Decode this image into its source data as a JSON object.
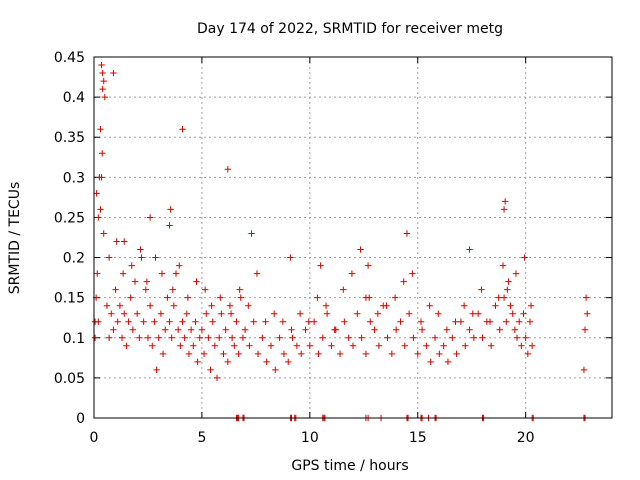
{
  "chart_data": {
    "type": "scatter",
    "title": "Day 174 of 2022, SRMTID for receiver metg",
    "xlabel": "GPS time / hours",
    "ylabel": "SRMTID / TECUs",
    "xlim": [
      0,
      24
    ],
    "ylim": [
      0,
      0.45
    ],
    "xticks": [
      "0",
      "5",
      "10",
      "15",
      "20"
    ],
    "yticks": [
      "0",
      "0.05",
      "0.1",
      "0.15",
      "0.2",
      "0.25",
      "0.3",
      "0.35",
      "0.4",
      "0.45"
    ],
    "grid": true,
    "marker": "+",
    "color": "#e00000",
    "series": [
      {
        "name": "SRMTID",
        "x": [
          0.05,
          0.1,
          0.15,
          0.2,
          0.25,
          0.3,
          0.35,
          0.4,
          0.45,
          0.5,
          0.6,
          0.7,
          0.8,
          0.9,
          1.0,
          1.1,
          1.2,
          1.3,
          1.4,
          1.5,
          1.6,
          1.7,
          1.8,
          1.9,
          2.0,
          2.1,
          2.2,
          2.3,
          2.4,
          2.5,
          2.6,
          2.7,
          2.8,
          2.9,
          3.0,
          3.1,
          3.2,
          3.3,
          3.4,
          3.5,
          3.6,
          3.7,
          3.8,
          3.9,
          4.0,
          4.1,
          4.2,
          4.3,
          4.4,
          4.5,
          4.6,
          4.7,
          4.8,
          4.9,
          5.0,
          5.1,
          5.2,
          5.3,
          5.4,
          5.5,
          5.6,
          5.7,
          5.8,
          5.9,
          6.0,
          6.1,
          6.2,
          6.3,
          6.4,
          6.5,
          6.6,
          6.7,
          6.8,
          6.9,
          7.0,
          7.2,
          7.4,
          7.6,
          7.8,
          8.0,
          8.2,
          8.4,
          8.6,
          8.8,
          9.0,
          9.2,
          9.4,
          9.6,
          9.8,
          10.0,
          10.2,
          10.4,
          10.6,
          10.8,
          11.0,
          11.2,
          11.4,
          11.6,
          11.8,
          12.0,
          12.2,
          12.4,
          12.6,
          12.8,
          13.0,
          13.2,
          13.4,
          13.6,
          13.8,
          14.0,
          14.2,
          14.4,
          14.6,
          14.8,
          15.0,
          15.2,
          15.4,
          15.6,
          15.8,
          16.0,
          16.2,
          16.4,
          16.6,
          16.8,
          17.0,
          17.2,
          17.4,
          17.6,
          17.8,
          18.0,
          18.2,
          18.4,
          18.6,
          18.8,
          19.0,
          19.1,
          19.2,
          19.3,
          19.4,
          19.5,
          19.6,
          19.7,
          19.8,
          19.9,
          20.0,
          20.1,
          20.2,
          20.3,
          22.7,
          22.75,
          22.8,
          22.85,
          0.05,
          0.2,
          0.3,
          0.35,
          0.38,
          0.4,
          0.9,
          1.4,
          2.6,
          3.5,
          3.55,
          4.1,
          6.2,
          7.3,
          9.1,
          10.5,
          12.6,
          12.7,
          14.5,
          17.4,
          18.95,
          19.0,
          19.05,
          0.12,
          0.45,
          0.7,
          1.05,
          1.35,
          1.75,
          2.15,
          2.45,
          2.85,
          3.15,
          3.65,
          3.95,
          4.35,
          4.75,
          5.15,
          5.45,
          5.85,
          6.35,
          6.75,
          7.15,
          7.55,
          7.95,
          8.35,
          8.75,
          9.15,
          9.55,
          9.95,
          10.35,
          10.75,
          11.15,
          11.55,
          11.95,
          12.35,
          12.75,
          13.15,
          13.55,
          13.95,
          14.35,
          14.75,
          15.15,
          15.55,
          15.95,
          16.35,
          16.75,
          17.15,
          17.55,
          17.95,
          18.35,
          18.75,
          19.15,
          19.55,
          19.95,
          20.25
        ],
        "y": [
          0.12,
          0.15,
          0.18,
          0.25,
          0.3,
          0.36,
          0.44,
          0.43,
          0.42,
          0.4,
          0.14,
          0.1,
          0.13,
          0.11,
          0.16,
          0.12,
          0.14,
          0.1,
          0.13,
          0.09,
          0.12,
          0.15,
          0.11,
          0.17,
          0.13,
          0.1,
          0.2,
          0.12,
          0.16,
          0.1,
          0.14,
          0.09,
          0.12,
          0.06,
          0.1,
          0.13,
          0.08,
          0.11,
          0.15,
          0.12,
          0.1,
          0.14,
          0.18,
          0.11,
          0.09,
          0.12,
          0.1,
          0.13,
          0.08,
          0.11,
          0.09,
          0.12,
          0.07,
          0.1,
          0.11,
          0.08,
          0.13,
          0.1,
          0.06,
          0.12,
          0.09,
          0.05,
          0.1,
          0.13,
          0.08,
          0.11,
          0.07,
          0.14,
          0.1,
          0.09,
          0.12,
          0.08,
          0.15,
          0.1,
          0.11,
          0.09,
          0.12,
          0.08,
          0.1,
          0.07,
          0.09,
          0.06,
          0.1,
          0.08,
          0.07,
          0.1,
          0.09,
          0.08,
          0.11,
          0.09,
          0.12,
          0.08,
          0.1,
          0.13,
          0.09,
          0.11,
          0.08,
          0.12,
          0.1,
          0.09,
          0.13,
          0.1,
          0.08,
          0.12,
          0.11,
          0.09,
          0.14,
          0.1,
          0.08,
          0.11,
          0.12,
          0.09,
          0.13,
          0.1,
          0.08,
          0.11,
          0.09,
          0.07,
          0.1,
          0.08,
          0.09,
          0.07,
          0.1,
          0.08,
          0.12,
          0.09,
          0.11,
          0.1,
          0.13,
          0.1,
          0.12,
          0.09,
          0.14,
          0.11,
          0.15,
          0.12,
          0.17,
          0.14,
          0.13,
          0.11,
          0.1,
          0.12,
          0.09,
          0.13,
          0.1,
          0.08,
          0.12,
          0.09,
          0.06,
          0.11,
          0.15,
          0.13,
          0.1,
          0.12,
          0.26,
          0.3,
          0.33,
          0.41,
          0.43,
          0.22,
          0.25,
          0.24,
          0.26,
          0.36,
          0.31,
          0.23,
          0.2,
          0.19,
          0.15,
          0.19,
          0.23,
          0.21,
          0.19,
          0.26,
          0.27,
          0.28,
          0.23,
          0.2,
          0.22,
          0.18,
          0.19,
          0.21,
          0.17,
          0.2,
          0.18,
          0.16,
          0.19,
          0.15,
          0.17,
          0.16,
          0.14,
          0.15,
          0.13,
          0.16,
          0.14,
          0.18,
          0.12,
          0.13,
          0.12,
          0.11,
          0.13,
          0.12,
          0.15,
          0.14,
          0.11,
          0.16,
          0.18,
          0.21,
          0.15,
          0.13,
          0.14,
          0.15,
          0.17,
          0.18,
          0.12,
          0.14,
          0.13,
          0.11,
          0.12,
          0.14,
          0.13,
          0.16,
          0.12,
          0.15,
          0.16,
          0.18,
          0.2,
          0.14
        ]
      }
    ],
    "rug_x": [
      6.6,
      6.65,
      6.7,
      6.9,
      6.95,
      9.1,
      9.15,
      9.3,
      9.35,
      10.6,
      10.65,
      10.7,
      12.6,
      12.7,
      13.3,
      14.5,
      14.55,
      15.15,
      15.2,
      15.5,
      15.8,
      15.85,
      18.0,
      18.05,
      20.3,
      20.35,
      22.7,
      22.75
    ]
  }
}
